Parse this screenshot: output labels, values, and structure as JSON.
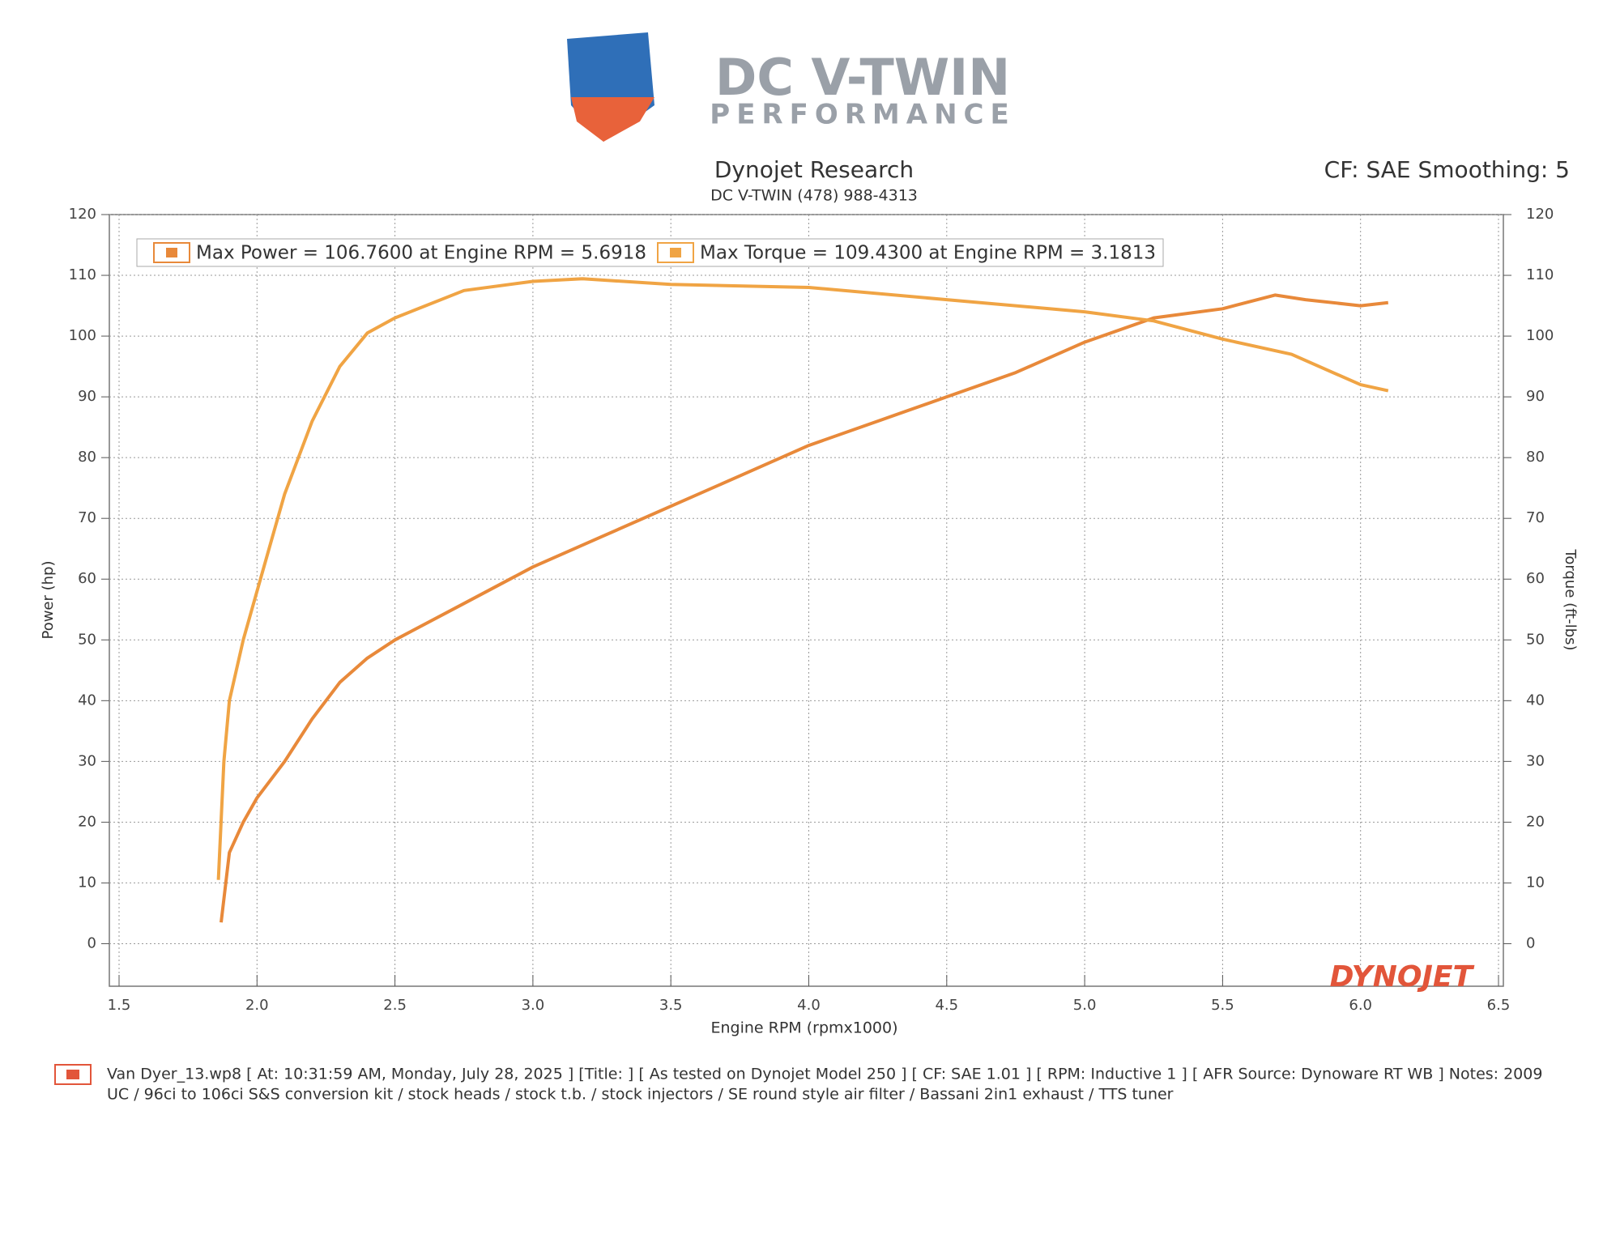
{
  "logo": {
    "line1": "DC V-TWIN",
    "line2": "PERFORMANCE"
  },
  "header": {
    "title": "Dynojet Research",
    "subtitle": "DC V-TWIN  (478) 988-4313",
    "settings": "CF: SAE Smoothing: 5"
  },
  "chart_data": {
    "type": "line",
    "xlabel": "Engine RPM (rpmx1000)",
    "ylabel": "Power (hp)",
    "y2label": "Torque (ft-lbs)",
    "xlim": [
      1.5,
      6.5
    ],
    "xticks": [
      1.5,
      {
        "value": 2,
        "label": "2.0"
      },
      2.5,
      {
        "value": 3,
        "label": "3.0"
      },
      3.5,
      {
        "value": 4,
        "label": "4.0"
      },
      4.5,
      {
        "value": 5,
        "label": "5.0"
      },
      5.5,
      {
        "value": 6,
        "label": "6.0"
      },
      6.5
    ],
    "ylim": [
      -7,
      120
    ],
    "yticks": [
      0,
      10,
      20,
      30,
      40,
      50,
      60,
      70,
      80,
      90,
      100,
      110,
      120
    ],
    "y2lim": [
      -7,
      120
    ],
    "y2ticks": [
      0,
      10,
      20,
      30,
      40,
      50,
      60,
      70,
      80,
      90,
      100,
      110,
      120
    ],
    "grid": true,
    "series": [
      {
        "name": "Max Power = 106.7600 at Engine RPM = 5.6918",
        "color": "#e8893a",
        "x": [
          1.87,
          1.9,
          1.95,
          2.0,
          2.1,
          2.2,
          2.3,
          2.4,
          2.5,
          2.75,
          3.0,
          3.25,
          3.5,
          3.75,
          4.0,
          4.25,
          4.5,
          4.75,
          5.0,
          5.25,
          5.5,
          5.69,
          5.8,
          6.0,
          6.1
        ],
        "values": [
          3.5,
          15,
          20,
          24,
          30,
          37,
          43,
          47,
          50,
          56,
          62,
          67,
          72,
          77,
          82,
          86,
          90,
          94,
          99,
          103,
          104.5,
          106.76,
          106,
          105,
          105.5
        ]
      },
      {
        "name": "Max Torque = 109.4300 at Engine RPM = 3.1813",
        "color": "#f0a444",
        "axis": "y2",
        "x": [
          1.86,
          1.88,
          1.9,
          1.95,
          2.0,
          2.05,
          2.1,
          2.2,
          2.3,
          2.4,
          2.5,
          2.75,
          3.0,
          3.18,
          3.5,
          4.0,
          4.5,
          5.0,
          5.25,
          5.5,
          5.75,
          6.0,
          6.1
        ],
        "values": [
          10.5,
          30,
          40,
          50,
          58,
          66,
          74,
          86,
          95,
          100.5,
          103,
          107.5,
          109,
          109.43,
          108.5,
          108,
          106,
          104,
          102.5,
          99.5,
          97,
          92,
          91
        ]
      }
    ],
    "brand": "DYNOJET"
  },
  "footer": {
    "line1": "Van Dyer_13.wp8 [ At: 10:31:59 AM, Monday, July 28, 2025 ] [Title: ]  [ As tested on Dynojet Model 250 ] [ CF: SAE 1.01 ] [ RPM: Inductive 1 ] [ AFR Source: Dynoware RT WB ] Notes: 2009",
    "line2": "UC / 96ci to 106ci S&S conversion kit / stock heads / stock t.b. / stock injectors / SE round style air filter / Bassani 2in1 exhaust / TTS tuner"
  }
}
